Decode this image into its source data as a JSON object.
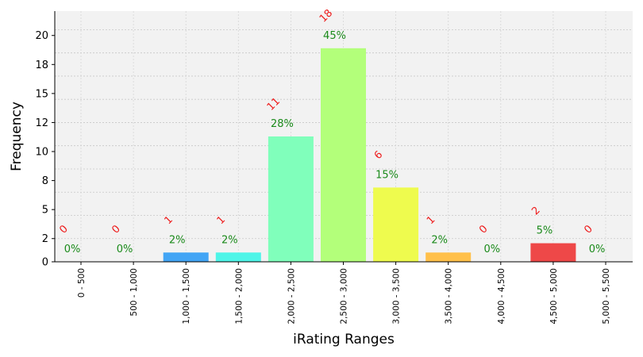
{
  "chart_data": {
    "type": "bar",
    "xlabel": "iRating Ranges",
    "ylabel": "Frequency",
    "ylim": [
      0,
      21.6
    ],
    "yticks": [
      0,
      2,
      4,
      6,
      8,
      10,
      12,
      14,
      16,
      18,
      20
    ],
    "ytick_labels": [
      "0",
      "2",
      "5",
      "8",
      "10",
      "12",
      "15",
      "18",
      "20"
    ],
    "ytick_values": [
      0,
      2,
      4.5,
      7,
      9.5,
      12,
      14.5,
      17,
      19.5
    ],
    "grid": true,
    "categories": [
      "0 - 500",
      "500 - 1,000",
      "1,000 - 1,500",
      "1,500 - 2,000",
      "2,000 - 2,500",
      "2,500 - 3,000",
      "3,000 - 3,500",
      "3,500 - 4,000",
      "4,000 - 4,500",
      "4,500 - 5,000",
      "5,000 - 5,500"
    ],
    "values": [
      0,
      0,
      1,
      1,
      11,
      18,
      6,
      1,
      0,
      2,
      0
    ],
    "bar_heights": [
      0,
      0,
      0.8,
      0.8,
      10.8,
      18.4,
      6.4,
      0.8,
      0,
      1.6,
      0
    ],
    "count_labels": [
      "0",
      "0",
      "1",
      "1",
      "11",
      "18",
      "6",
      "1",
      "0",
      "2",
      "0"
    ],
    "percent_labels": [
      "0%",
      "0%",
      "2%",
      "2%",
      "28%",
      "45%",
      "15%",
      "2%",
      "0%",
      "5%",
      "0%"
    ],
    "colors": [
      "#ffffff",
      "#ffffff",
      "#42a5f5",
      "#4ef5e8",
      "#80ffbb",
      "#b3ff7a",
      "#eefb4e",
      "#ffc04a",
      "#ffffff",
      "#ee4848",
      "#ffffff"
    ]
  }
}
